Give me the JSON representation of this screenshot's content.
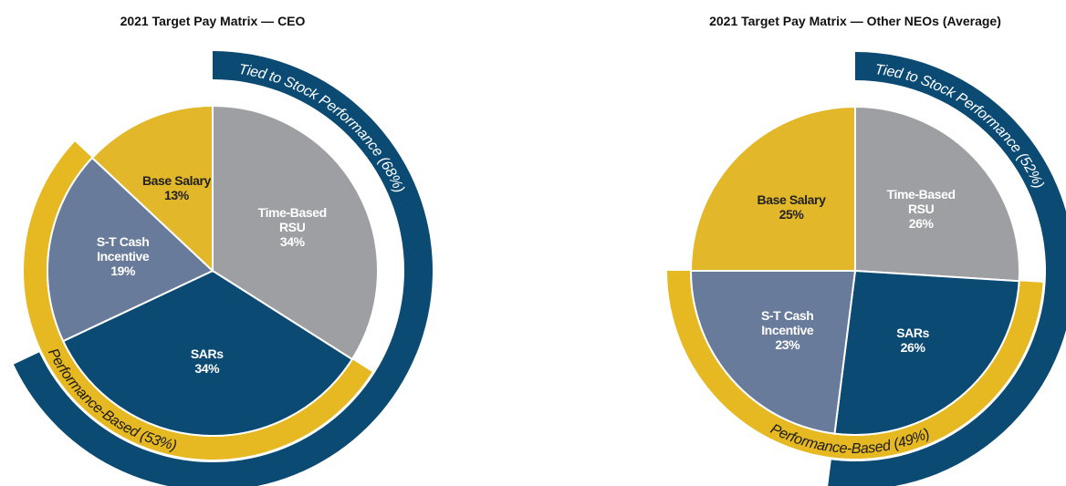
{
  "chart_data": [
    {
      "type": "pie",
      "title": "2021 Target Pay Matrix — CEO",
      "categories": [
        "Time-Based RSU",
        "SARs",
        "S-T Cash Incentive",
        "Base Salary"
      ],
      "values": [
        34,
        34,
        19,
        13
      ],
      "value_labels": [
        "34%",
        "34%",
        "19%",
        "13%"
      ],
      "colors": [
        "#9d9fa2",
        "#0b4a73",
        "#687b9b",
        "#e2b729"
      ],
      "bands": [
        {
          "label": "Tied to Stock Performance (68%)",
          "color": "#0b4a73",
          "covers": [
            "Time-Based RSU",
            "SARs"
          ]
        },
        {
          "label": "Performance-Based (53%)",
          "color": "#e6b923",
          "covers": [
            "SARs",
            "S-T Cash Incentive"
          ]
        }
      ]
    },
    {
      "type": "pie",
      "title": "2021 Target Pay Matrix — Other NEOs (Average)",
      "categories": [
        "Time-Based RSU",
        "SARs",
        "S-T Cash Incentive",
        "Base Salary"
      ],
      "values": [
        26,
        26,
        23,
        25
      ],
      "value_labels": [
        "26%",
        "26%",
        "23%",
        "25%"
      ],
      "colors": [
        "#9d9fa2",
        "#0b4a73",
        "#687b9b",
        "#e2b729"
      ],
      "bands": [
        {
          "label": "Tied to Stock Performance (52%)",
          "color": "#0b4a73",
          "covers": [
            "Time-Based RSU",
            "SARs"
          ]
        },
        {
          "label": "Performance-Based (49%)",
          "color": "#e6b923",
          "covers": [
            "SARs",
            "S-T Cash Incentive"
          ]
        }
      ]
    }
  ]
}
